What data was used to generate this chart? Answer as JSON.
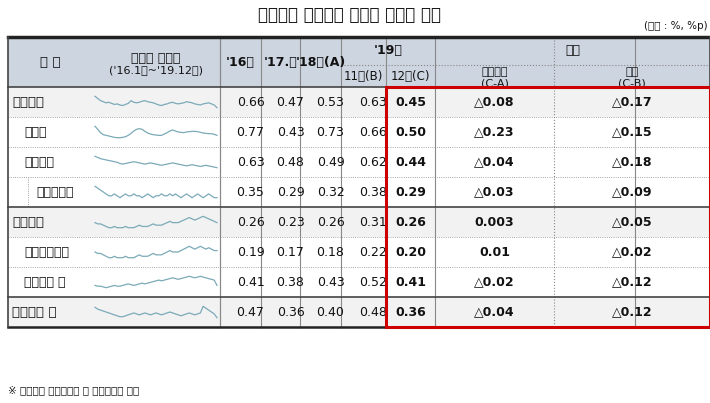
{
  "title": "국내은행 원화대출 부문별 연체율 추이",
  "unit_label": "(단위 : %, %p)",
  "footnote": "※ 은행계정 원화대출금 및 신탁대출금 기준",
  "col_구분": "구 분",
  "col_series": [
    "연체율 시계열",
    "('16.1월~'19.12월)"
  ],
  "col_16": "'16말",
  "col_17": "'17.말",
  "col_18": "'18말(A)",
  "col_19year": "'19년",
  "col_11": "11말(B)",
  "col_12": "12말(C)",
  "col_jeung": "증감",
  "col_ca": [
    "전년동월",
    "(C-A)"
  ],
  "col_cb": [
    "전월",
    "(C-B)"
  ],
  "rows": [
    {
      "label": "기업대출",
      "indent": 0,
      "bold": true,
      "sep_left": false,
      "v16": "0.66",
      "v17": "0.47",
      "v18": "0.53",
      "v11": "0.63",
      "v12": "0.45",
      "vca": "△0.08",
      "vcb": "△0.17"
    },
    {
      "label": "대기업",
      "indent": 1,
      "bold": false,
      "sep_left": false,
      "v16": "0.77",
      "v17": "0.43",
      "v18": "0.73",
      "v11": "0.66",
      "v12": "0.50",
      "vca": "△0.23",
      "vcb": "△0.15"
    },
    {
      "label": "중소기업",
      "indent": 1,
      "bold": false,
      "sep_left": false,
      "v16": "0.63",
      "v17": "0.48",
      "v18": "0.49",
      "v11": "0.62",
      "v12": "0.44",
      "vca": "△0.04",
      "vcb": "△0.18"
    },
    {
      "label": "개인사업자",
      "indent": 2,
      "bold": false,
      "sep_left": true,
      "v16": "0.35",
      "v17": "0.29",
      "v18": "0.32",
      "v11": "0.38",
      "v12": "0.29",
      "vca": "△0.03",
      "vcb": "△0.09"
    },
    {
      "label": "가계대출",
      "indent": 0,
      "bold": true,
      "sep_left": false,
      "v16": "0.26",
      "v17": "0.23",
      "v18": "0.26",
      "v11": "0.31",
      "v12": "0.26",
      "vca": "0.003",
      "vcb": "△0.05"
    },
    {
      "label": "주택담보대출",
      "indent": 1,
      "bold": false,
      "sep_left": false,
      "v16": "0.19",
      "v17": "0.17",
      "v18": "0.18",
      "v11": "0.22",
      "v12": "0.20",
      "vca": "0.01",
      "vcb": "△0.02"
    },
    {
      "label": "신용대출 등",
      "indent": 1,
      "bold": false,
      "sep_left": false,
      "v16": "0.41",
      "v17": "0.38",
      "v18": "0.43",
      "v11": "0.52",
      "v12": "0.41",
      "vca": "△0.02",
      "vcb": "△0.12"
    },
    {
      "label": "원화대출 계",
      "indent": 0,
      "bold": true,
      "sep_left": false,
      "v16": "0.47",
      "v17": "0.36",
      "v18": "0.40",
      "v11": "0.48",
      "v12": "0.36",
      "vca": "△0.04",
      "vcb": "△0.12"
    }
  ],
  "sparkline_data": {
    "기업대출": [
      0.66,
      0.62,
      0.58,
      0.56,
      0.54,
      0.55,
      0.53,
      0.51,
      0.52,
      0.5,
      0.49,
      0.51,
      0.53,
      0.58,
      0.55,
      0.54,
      0.55,
      0.57,
      0.58,
      0.56,
      0.55,
      0.54,
      0.52,
      0.5,
      0.49,
      0.51,
      0.52,
      0.54,
      0.55,
      0.53,
      0.52,
      0.53,
      0.54,
      0.56,
      0.55,
      0.54,
      0.52,
      0.51,
      0.5,
      0.52,
      0.53,
      0.54,
      0.52,
      0.5,
      0.45
    ],
    "대기업": [
      0.77,
      0.68,
      0.58,
      0.52,
      0.5,
      0.48,
      0.46,
      0.44,
      0.43,
      0.43,
      0.44,
      0.46,
      0.5,
      0.56,
      0.63,
      0.68,
      0.7,
      0.68,
      0.62,
      0.57,
      0.54,
      0.52,
      0.51,
      0.5,
      0.5,
      0.54,
      0.58,
      0.63,
      0.66,
      0.63,
      0.6,
      0.59,
      0.58,
      0.6,
      0.61,
      0.62,
      0.62,
      0.61,
      0.59,
      0.57,
      0.56,
      0.55,
      0.55,
      0.53,
      0.5
    ],
    "중소기업": [
      0.63,
      0.61,
      0.59,
      0.58,
      0.57,
      0.56,
      0.55,
      0.54,
      0.53,
      0.51,
      0.5,
      0.51,
      0.52,
      0.53,
      0.54,
      0.53,
      0.52,
      0.51,
      0.5,
      0.51,
      0.52,
      0.51,
      0.5,
      0.49,
      0.48,
      0.49,
      0.5,
      0.51,
      0.52,
      0.51,
      0.5,
      0.49,
      0.48,
      0.47,
      0.48,
      0.49,
      0.48,
      0.47,
      0.46,
      0.47,
      0.48,
      0.47,
      0.46,
      0.45,
      0.44
    ],
    "개인사업자": [
      0.35,
      0.34,
      0.33,
      0.32,
      0.31,
      0.3,
      0.3,
      0.31,
      0.3,
      0.29,
      0.3,
      0.31,
      0.3,
      0.3,
      0.31,
      0.3,
      0.3,
      0.29,
      0.3,
      0.31,
      0.3,
      0.29,
      0.3,
      0.3,
      0.31,
      0.3,
      0.3,
      0.31,
      0.3,
      0.31,
      0.3,
      0.29,
      0.3,
      0.31,
      0.3,
      0.29,
      0.3,
      0.31,
      0.3,
      0.29,
      0.3,
      0.31,
      0.3,
      0.29,
      0.29
    ],
    "가계대출": [
      0.26,
      0.25,
      0.25,
      0.24,
      0.23,
      0.22,
      0.22,
      0.23,
      0.22,
      0.22,
      0.22,
      0.23,
      0.22,
      0.22,
      0.22,
      0.23,
      0.24,
      0.23,
      0.23,
      0.23,
      0.24,
      0.25,
      0.24,
      0.24,
      0.24,
      0.25,
      0.26,
      0.27,
      0.26,
      0.26,
      0.26,
      0.27,
      0.28,
      0.29,
      0.3,
      0.29,
      0.28,
      0.29,
      0.3,
      0.31,
      0.3,
      0.29,
      0.28,
      0.27,
      0.26
    ],
    "주택담보대출": [
      0.19,
      0.18,
      0.18,
      0.17,
      0.16,
      0.15,
      0.15,
      0.16,
      0.15,
      0.15,
      0.15,
      0.16,
      0.15,
      0.15,
      0.15,
      0.16,
      0.17,
      0.16,
      0.16,
      0.16,
      0.17,
      0.18,
      0.17,
      0.17,
      0.17,
      0.18,
      0.19,
      0.2,
      0.19,
      0.19,
      0.19,
      0.2,
      0.21,
      0.22,
      0.23,
      0.22,
      0.21,
      0.22,
      0.23,
      0.22,
      0.21,
      0.22,
      0.21,
      0.2,
      0.2
    ],
    "신용대출 등": [
      0.41,
      0.4,
      0.4,
      0.39,
      0.38,
      0.39,
      0.4,
      0.41,
      0.4,
      0.4,
      0.41,
      0.42,
      0.43,
      0.42,
      0.41,
      0.42,
      0.43,
      0.44,
      0.43,
      0.44,
      0.45,
      0.46,
      0.47,
      0.48,
      0.47,
      0.48,
      0.49,
      0.5,
      0.51,
      0.5,
      0.49,
      0.5,
      0.51,
      0.52,
      0.53,
      0.52,
      0.51,
      0.52,
      0.53,
      0.52,
      0.51,
      0.5,
      0.49,
      0.48,
      0.41
    ],
    "원화대출 계": [
      0.47,
      0.45,
      0.44,
      0.43,
      0.42,
      0.41,
      0.4,
      0.39,
      0.38,
      0.37,
      0.37,
      0.38,
      0.39,
      0.4,
      0.41,
      0.4,
      0.39,
      0.4,
      0.41,
      0.4,
      0.39,
      0.4,
      0.41,
      0.4,
      0.39,
      0.4,
      0.41,
      0.42,
      0.41,
      0.4,
      0.39,
      0.38,
      0.39,
      0.4,
      0.41,
      0.4,
      0.39,
      0.4,
      0.41,
      0.48,
      0.46,
      0.44,
      0.42,
      0.4,
      0.36
    ]
  },
  "bg_color": "#ffffff",
  "header_bg": "#cdd5e0",
  "red_border_color": "#cc0000",
  "sparkline_color": "#7baab8",
  "text_color": "#111111"
}
